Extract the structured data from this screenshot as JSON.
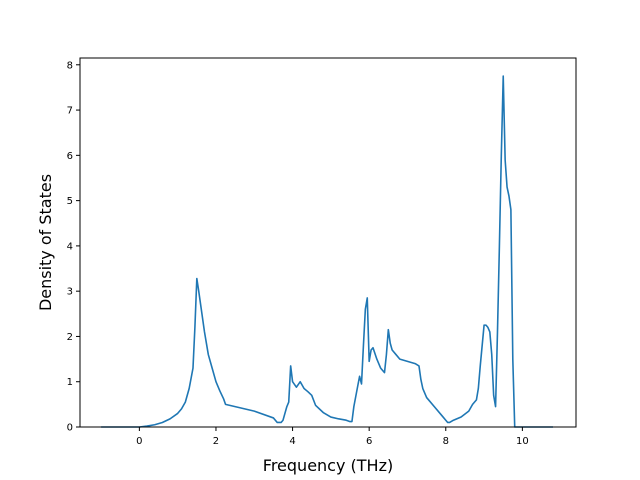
{
  "chart_data": {
    "type": "line",
    "title": "",
    "xlabel": "Frequency (THz)",
    "ylabel": "Density of States",
    "xlim": [
      -1.55,
      11.4
    ],
    "ylim": [
      0,
      8.15
    ],
    "xticks": [
      0,
      2,
      4,
      6,
      8,
      10
    ],
    "yticks": [
      0,
      1,
      2,
      3,
      4,
      5,
      6,
      7,
      8
    ],
    "grid": false,
    "legend": "none",
    "colors": {
      "line": "#1f77b4",
      "axes": "#000000",
      "background": "#ffffff"
    },
    "series": [
      {
        "x": [
          -1.0,
          -0.5,
          0.0,
          0.2,
          0.4,
          0.6,
          0.8,
          1.0,
          1.1,
          1.2,
          1.3,
          1.4,
          1.45,
          1.5,
          1.55,
          1.6,
          1.7,
          1.8,
          1.9,
          2.0,
          2.1,
          2.2,
          2.25,
          2.5,
          3.0,
          3.5,
          3.6,
          3.7,
          3.75,
          3.8,
          3.85,
          3.9,
          3.95,
          4.0,
          4.1,
          4.2,
          4.3,
          4.4,
          4.5,
          4.6,
          4.8,
          5.0,
          5.2,
          5.4,
          5.5,
          5.55,
          5.6,
          5.7,
          5.75,
          5.8,
          5.85,
          5.9,
          5.95,
          6.0,
          6.05,
          6.1,
          6.2,
          6.3,
          6.4,
          6.45,
          6.5,
          6.55,
          6.6,
          6.7,
          6.8,
          7.0,
          7.2,
          7.3,
          7.35,
          7.4,
          7.5,
          7.7,
          7.9,
          8.0,
          8.05,
          8.1,
          8.2,
          8.4,
          8.6,
          8.7,
          8.8,
          8.85,
          8.9,
          9.0,
          9.05,
          9.1,
          9.15,
          9.2,
          9.25,
          9.3,
          9.35,
          9.4,
          9.45,
          9.5,
          9.55,
          9.6,
          9.65,
          9.7,
          9.75,
          9.8,
          9.85,
          10.0,
          10.5,
          10.8
        ],
        "values": [
          0.0,
          0.0,
          0.0,
          0.02,
          0.05,
          0.1,
          0.18,
          0.3,
          0.4,
          0.55,
          0.85,
          1.3,
          2.2,
          3.28,
          3.0,
          2.7,
          2.1,
          1.6,
          1.3,
          1.0,
          0.8,
          0.62,
          0.5,
          0.45,
          0.35,
          0.2,
          0.1,
          0.1,
          0.15,
          0.3,
          0.45,
          0.55,
          1.35,
          1.0,
          0.88,
          1.0,
          0.85,
          0.78,
          0.7,
          0.48,
          0.32,
          0.22,
          0.18,
          0.15,
          0.12,
          0.12,
          0.45,
          0.9,
          1.12,
          0.95,
          1.8,
          2.6,
          2.85,
          1.45,
          1.7,
          1.75,
          1.5,
          1.3,
          1.2,
          1.6,
          2.15,
          1.85,
          1.7,
          1.6,
          1.5,
          1.45,
          1.4,
          1.35,
          1.05,
          0.85,
          0.65,
          0.45,
          0.25,
          0.15,
          0.1,
          0.1,
          0.15,
          0.22,
          0.35,
          0.5,
          0.6,
          0.85,
          1.35,
          2.25,
          2.25,
          2.2,
          2.1,
          1.6,
          0.7,
          0.45,
          2.1,
          4.0,
          6.0,
          7.75,
          5.9,
          5.3,
          5.1,
          4.8,
          1.5,
          0.0,
          0.0,
          0.0,
          0.0,
          0.0
        ]
      }
    ]
  }
}
